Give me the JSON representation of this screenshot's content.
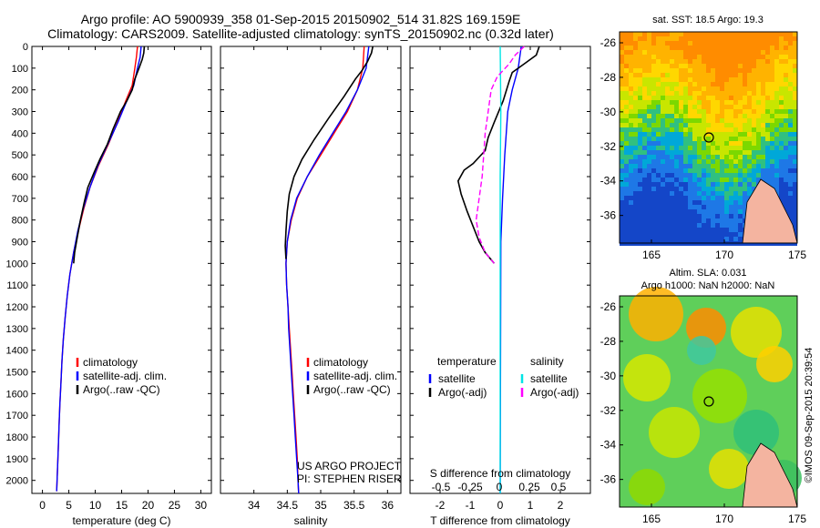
{
  "header": {
    "line1": "Argo profile: AO 5900939_358 01-Sep-2015 20150902_514 31.82S 169.159E",
    "line2": "Climatology: CARS2009. Satellite-adjusted climatology: synTS_20150902.nc (0.32d later)"
  },
  "credit": "©IMOS 09-Sep-2015 20:39:54",
  "project": {
    "line1": "US ARGO PROJECT",
    "line2": "PI: STEPHEN RISER"
  },
  "maps": {
    "sst_title": "sat. SST: 18.5 Argo: 19.3",
    "sla_title1": "Altim. SLA: 0.031",
    "sla_title2": "Argo h1000: NaN h2000: NaN",
    "x_ticks": [
      "165",
      "170",
      "175"
    ],
    "y_ticks": [
      "-26",
      "-28",
      "-30",
      "-32",
      "-34",
      "-36"
    ]
  },
  "colors": {
    "climatology": "#ff0000",
    "satellite": "#0000ff",
    "argo": "#000000",
    "sal_satellite": "#00e5e5",
    "sal_argo": "#ff00ff"
  },
  "chart_data": [
    {
      "type": "line",
      "xlabel": "temperature (deg C)",
      "ylabel": "",
      "xlim": [
        -2,
        32
      ],
      "ylim": [
        2060,
        0
      ],
      "x_ticks": [
        0,
        5,
        10,
        15,
        20,
        25,
        30
      ],
      "y_ticks": [
        0,
        100,
        200,
        300,
        400,
        500,
        600,
        700,
        800,
        900,
        1000,
        1100,
        1200,
        1300,
        1400,
        1500,
        1600,
        1700,
        1800,
        1900,
        2000
      ],
      "legend": [
        "climatology",
        "satellite-adj. clim.",
        "Argo(..raw -QC)"
      ],
      "series": [
        {
          "name": "climatology",
          "color": "#ff0000",
          "points": [
            [
              18,
              0
            ],
            [
              17.8,
              50
            ],
            [
              17.5,
              100
            ],
            [
              17,
              180
            ],
            [
              15.8,
              250
            ],
            [
              14.2,
              350
            ],
            [
              12.5,
              450
            ],
            [
              10.6,
              550
            ],
            [
              9,
              650
            ],
            [
              7.8,
              750
            ],
            [
              6.8,
              850
            ],
            [
              5.9,
              950
            ],
            [
              5.2,
              1050
            ],
            [
              4.7,
              1150
            ],
            [
              4.3,
              1250
            ],
            [
              3.95,
              1350
            ],
            [
              3.7,
              1450
            ],
            [
              3.5,
              1550
            ],
            [
              3.3,
              1650
            ],
            [
              3.15,
              1750
            ],
            [
              3,
              1850
            ],
            [
              2.85,
              1950
            ],
            [
              2.7,
              2050
            ]
          ]
        },
        {
          "name": "satellite-adj. clim.",
          "color": "#0000ff",
          "points": [
            [
              18.7,
              0
            ],
            [
              18.5,
              50
            ],
            [
              18,
              100
            ],
            [
              17.3,
              180
            ],
            [
              16,
              250
            ],
            [
              14.3,
              350
            ],
            [
              12.4,
              450
            ],
            [
              10.5,
              550
            ],
            [
              9,
              650
            ],
            [
              7.7,
              750
            ],
            [
              6.7,
              850
            ],
            [
              5.9,
              950
            ],
            [
              5.2,
              1050
            ],
            [
              4.7,
              1150
            ],
            [
              4.3,
              1250
            ],
            [
              3.95,
              1350
            ],
            [
              3.7,
              1450
            ],
            [
              3.5,
              1550
            ],
            [
              3.3,
              1650
            ],
            [
              3.15,
              1750
            ],
            [
              3,
              1850
            ],
            [
              2.85,
              1950
            ],
            [
              2.7,
              2050
            ]
          ]
        },
        {
          "name": "Argo(..raw -QC)",
          "color": "#000000",
          "points": [
            [
              19.3,
              0
            ],
            [
              19.2,
              30
            ],
            [
              18.9,
              60
            ],
            [
              18.3,
              100
            ],
            [
              17.5,
              150
            ],
            [
              17,
              200
            ],
            [
              16,
              250
            ],
            [
              14.8,
              300
            ],
            [
              13.4,
              380
            ],
            [
              12.3,
              450
            ],
            [
              10.9,
              520
            ],
            [
              9.8,
              580
            ],
            [
              8.6,
              650
            ],
            [
              7.9,
              720
            ],
            [
              7.2,
              800
            ],
            [
              6.6,
              880
            ],
            [
              6.1,
              950
            ],
            [
              5.9,
              1000
            ]
          ]
        }
      ]
    },
    {
      "type": "line",
      "xlabel": "salinity",
      "ylabel": "",
      "xlim": [
        33.5,
        36.2
      ],
      "ylim": [
        2060,
        0
      ],
      "x_ticks": [
        34,
        34.5,
        35,
        35.5,
        36
      ],
      "legend": [
        "climatology",
        "satellite-adj. clim.",
        "Argo(..raw -QC)"
      ],
      "series": [
        {
          "name": "climatology",
          "color": "#ff0000",
          "points": [
            [
              35.65,
              0
            ],
            [
              35.63,
              100
            ],
            [
              35.55,
              200
            ],
            [
              35.4,
              300
            ],
            [
              35.2,
              400
            ],
            [
              35,
              500
            ],
            [
              34.8,
              600
            ],
            [
              34.65,
              700
            ],
            [
              34.56,
              800
            ],
            [
              34.5,
              900
            ],
            [
              34.48,
              1000
            ],
            [
              34.49,
              1100
            ],
            [
              34.51,
              1200
            ],
            [
              34.53,
              1300
            ],
            [
              34.55,
              1400
            ],
            [
              34.57,
              1500
            ],
            [
              34.59,
              1600
            ],
            [
              34.61,
              1700
            ],
            [
              34.63,
              1800
            ],
            [
              34.65,
              1900
            ],
            [
              34.66,
              2000
            ],
            [
              34.67,
              2060
            ]
          ]
        },
        {
          "name": "satellite-adj. clim.",
          "color": "#0000ff",
          "points": [
            [
              35.72,
              0
            ],
            [
              35.68,
              100
            ],
            [
              35.55,
              200
            ],
            [
              35.38,
              300
            ],
            [
              35.18,
              400
            ],
            [
              34.98,
              500
            ],
            [
              34.8,
              600
            ],
            [
              34.64,
              700
            ],
            [
              34.55,
              800
            ],
            [
              34.5,
              900
            ],
            [
              34.48,
              1000
            ],
            [
              34.49,
              1100
            ],
            [
              34.51,
              1200
            ],
            [
              34.52,
              1300
            ],
            [
              34.54,
              1400
            ],
            [
              34.56,
              1500
            ],
            [
              34.58,
              1600
            ],
            [
              34.6,
              1700
            ],
            [
              34.62,
              1800
            ],
            [
              34.64,
              1900
            ],
            [
              34.66,
              2000
            ],
            [
              34.67,
              2060
            ]
          ]
        },
        {
          "name": "Argo(..raw -QC)",
          "color": "#000000",
          "points": [
            [
              35.78,
              0
            ],
            [
              35.76,
              30
            ],
            [
              35.7,
              70
            ],
            [
              35.62,
              110
            ],
            [
              35.52,
              150
            ],
            [
              35.35,
              230
            ],
            [
              35.12,
              330
            ],
            [
              34.9,
              430
            ],
            [
              34.72,
              520
            ],
            [
              34.6,
              600
            ],
            [
              34.53,
              680
            ],
            [
              34.5,
              760
            ],
            [
              34.48,
              850
            ],
            [
              34.47,
              920
            ],
            [
              34.48,
              980
            ]
          ]
        }
      ]
    },
    {
      "type": "line",
      "xlabel": "T difference from climatology",
      "ylabel": "",
      "title": "S difference from climatology",
      "xlim": [
        -3,
        3
      ],
      "ylim": [
        2060,
        0
      ],
      "x_ticks": [
        -2,
        -1,
        0,
        1,
        2
      ],
      "top_ticks": [
        "-0.5",
        "-0.25",
        "0",
        "0.25",
        "0.5"
      ],
      "legend_titles": [
        "temperature",
        "salinity"
      ],
      "legend": [
        "satellite",
        "Argo(-adj)",
        "satellite",
        "Argo(-adj)"
      ],
      "series": [
        {
          "name": "satellite",
          "color": "#0000ff",
          "points": [
            [
              0.7,
              0
            ],
            [
              0.6,
              100
            ],
            [
              0.4,
              200
            ],
            [
              0.25,
              300
            ],
            [
              0.15,
              500
            ],
            [
              0.08,
              700
            ],
            [
              0.02,
              900
            ],
            [
              0,
              2060
            ]
          ]
        },
        {
          "name": "Argo(-adj)",
          "color": "#000000",
          "points": [
            [
              1.3,
              0
            ],
            [
              1.2,
              40
            ],
            [
              0.8,
              80
            ],
            [
              0.4,
              120
            ],
            [
              0.3,
              160
            ],
            [
              0.1,
              250
            ],
            [
              -0.2,
              350
            ],
            [
              -0.4,
              420
            ],
            [
              -0.5,
              480
            ],
            [
              -0.9,
              540
            ],
            [
              -1.2,
              570
            ],
            [
              -1.4,
              620
            ],
            [
              -1.3,
              680
            ],
            [
              -1.1,
              760
            ],
            [
              -0.9,
              830
            ],
            [
              -0.7,
              900
            ],
            [
              -0.5,
              950
            ],
            [
              -0.2,
              1000
            ]
          ]
        },
        {
          "name": "satellite",
          "color": "#00e5e5",
          "points": [
            [
              0,
              0
            ],
            [
              0.02,
              300
            ],
            [
              0,
              600
            ],
            [
              0,
              2060
            ]
          ]
        },
        {
          "name": "Argo(-adj)",
          "color": "#ff00ff",
          "points": [
            [
              0.8,
              0
            ],
            [
              0.5,
              40
            ],
            [
              0.3,
              80
            ],
            [
              -0.1,
              140
            ],
            [
              -0.3,
              200
            ],
            [
              -0.4,
              300
            ],
            [
              -0.5,
              400
            ],
            [
              -0.55,
              500
            ],
            [
              -0.6,
              600
            ],
            [
              -0.7,
              700
            ],
            [
              -0.8,
              800
            ],
            [
              -0.7,
              880
            ],
            [
              -0.5,
              950
            ],
            [
              -0.2,
              1000
            ]
          ]
        }
      ]
    }
  ]
}
